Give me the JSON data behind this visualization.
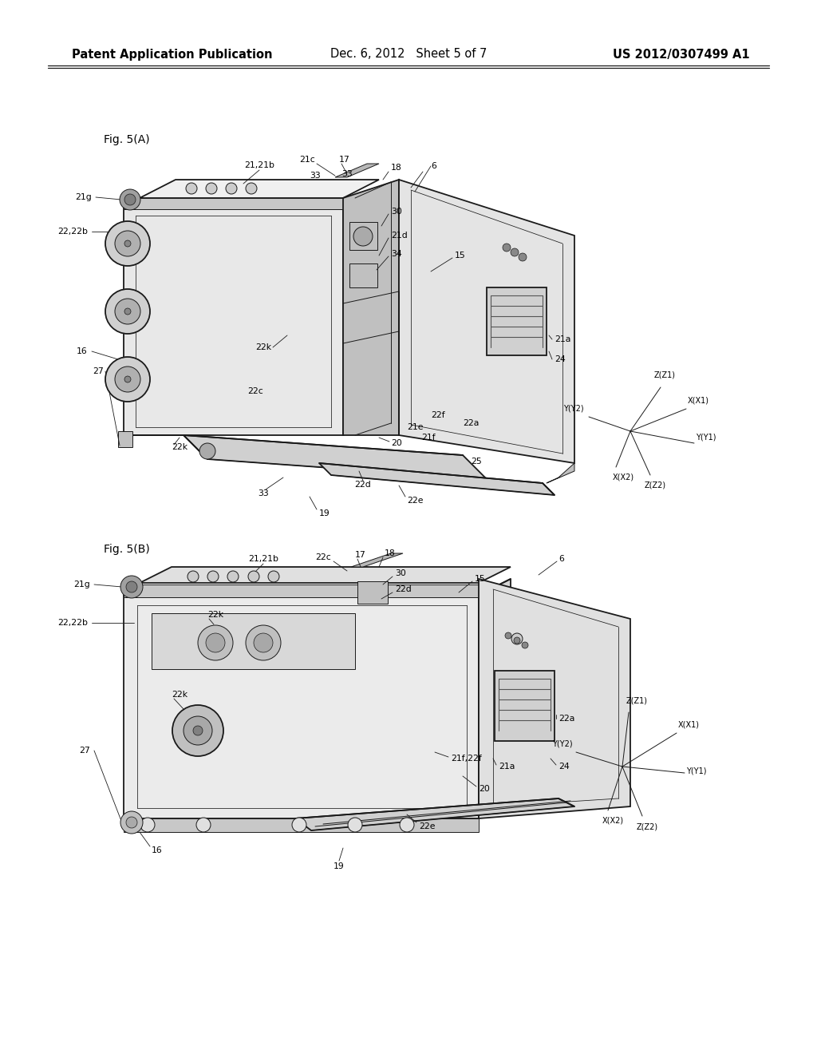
{
  "background_color": "#ffffff",
  "page_width": 10.24,
  "page_height": 13.2,
  "header_left": "Patent Application Publication",
  "header_center": "Dec. 6, 2012   Sheet 5 of 7",
  "header_right": "US 2012/0307499 A1",
  "header_fontsize": 10.5,
  "drawing_color": "#1a1a1a",
  "gray_color": "#888888",
  "light_gray": "#cccccc",
  "fig_a_title": "Fig. 5(A)",
  "fig_b_title": "Fig. 5(B)",
  "label_fontsize": 7.8,
  "title_fontsize": 10.0
}
